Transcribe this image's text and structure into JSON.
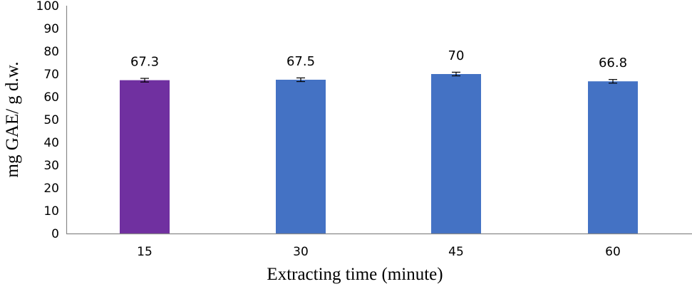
{
  "chart_data": {
    "type": "bar",
    "title": "",
    "xlabel": "Extracting time (minute)",
    "ylabel": "mg GAE/ g d.w.",
    "categories": [
      "15",
      "30",
      "45",
      "60"
    ],
    "values": [
      67.3,
      67.5,
      70,
      66.8
    ],
    "data_labels": [
      "67.3",
      "67.5",
      "70",
      "66.8"
    ],
    "error_bars": [
      0.8,
      0.8,
      0.8,
      0.8
    ],
    "bar_colors": [
      "#7030A0",
      "#4472C4",
      "#4472C4",
      "#4472C4"
    ],
    "ylim": [
      0,
      100
    ],
    "yticks": [
      0,
      10,
      20,
      30,
      40,
      50,
      60,
      70,
      80,
      90,
      100
    ],
    "grid": false,
    "legend": null
  }
}
